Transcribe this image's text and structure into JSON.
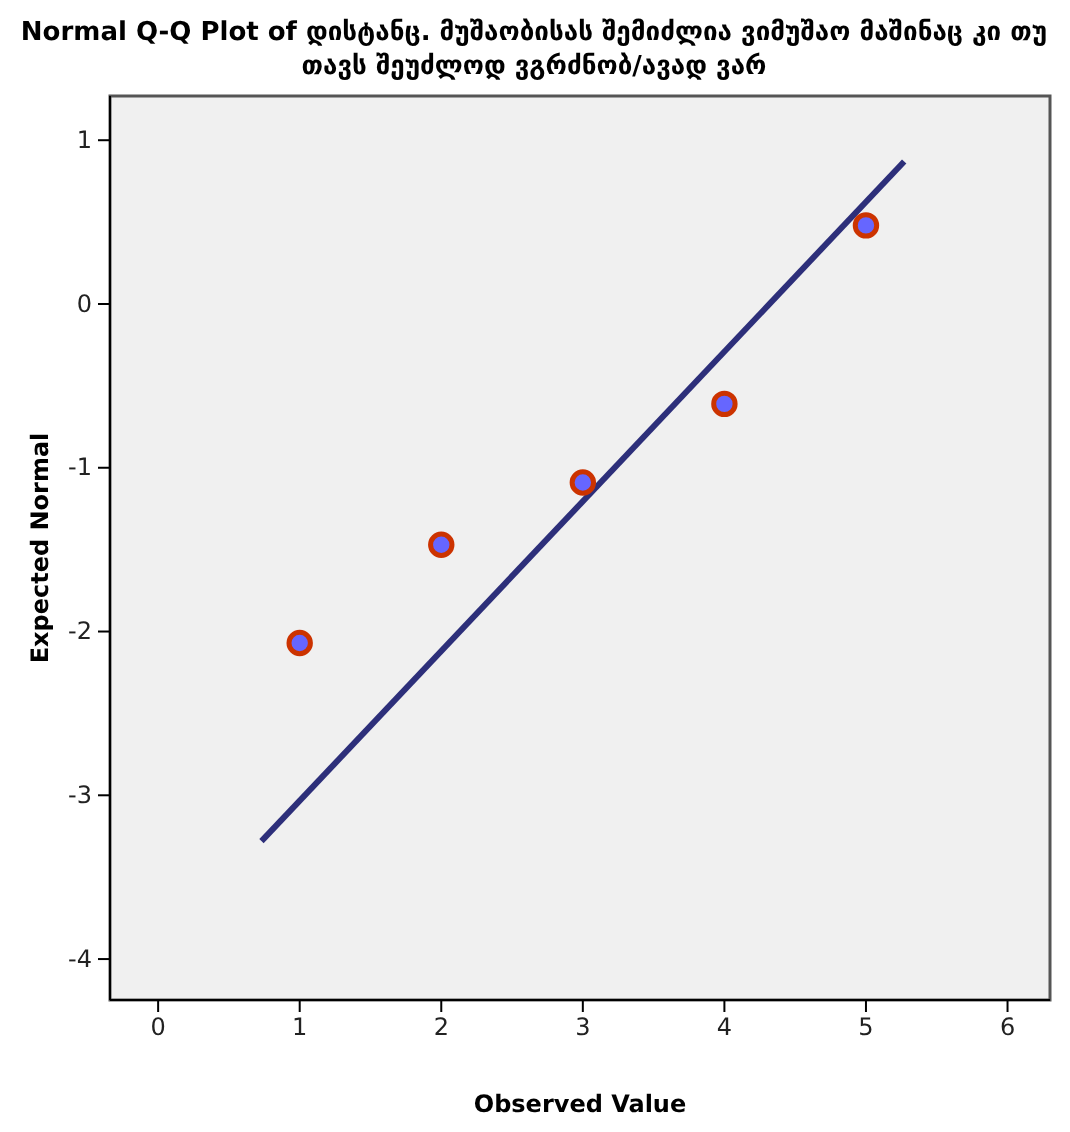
{
  "chart_data": {
    "type": "scatter",
    "title": "Normal Q-Q Plot of დისტანც. მუშაობისას შემიძლია ვიმუშაო მაშინაც კი თუ თავს შეუძლოდ ვგრძნობ/ავად ვარ",
    "xlabel": "Observed Value",
    "ylabel": "Expected Normal",
    "xlim": [
      -0.34,
      6.3
    ],
    "xticks": [
      0,
      1,
      2,
      3,
      4,
      5,
      6
    ],
    "ylim": [
      -4.25,
      1.27
    ],
    "yticks": [
      -4,
      -3,
      -2,
      -1,
      0,
      1
    ],
    "grid": false,
    "series": [
      {
        "marker": "circle",
        "color": "#6666ff",
        "x": [
          1,
          2,
          3,
          4,
          5
        ],
        "values": [
          -2.07,
          -1.47,
          -1.09,
          -0.61,
          0.48
        ]
      },
      {
        "type": "line",
        "color": "#2d2f7a",
        "x": [
          0.73,
          5.27
        ],
        "values": [
          -3.28,
          0.87
        ],
        "line_style": "solid",
        "marker": "none"
      }
    ]
  }
}
